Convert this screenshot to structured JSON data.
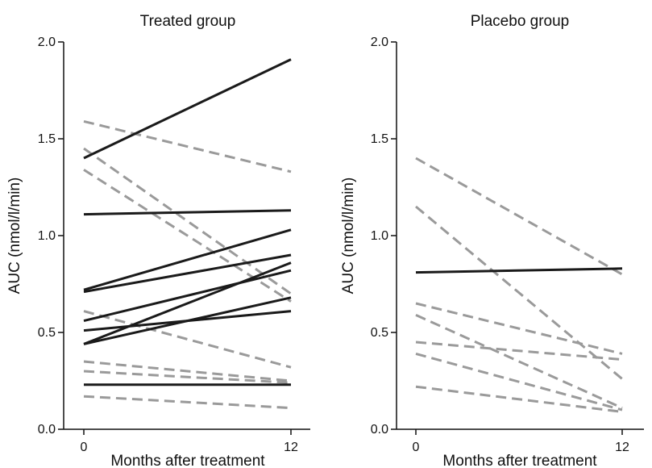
{
  "chart_data": [
    {
      "type": "line",
      "title": "Treated group",
      "xlabel": "Months after treatment",
      "ylabel": "AUC (nmol/l/min)",
      "categories": [
        "0",
        "12"
      ],
      "x": [
        0,
        12
      ],
      "xticks": [
        "0",
        "12"
      ],
      "yticks": [
        "0.0",
        "0.5",
        "1.0",
        "1.5",
        "2.0"
      ],
      "ylim": [
        0,
        2
      ],
      "grid": false,
      "series": [
        {
          "style": "solid",
          "values": [
            1.4,
            1.91
          ]
        },
        {
          "style": "solid",
          "values": [
            1.11,
            1.13
          ]
        },
        {
          "style": "solid",
          "values": [
            0.72,
            1.03
          ]
        },
        {
          "style": "solid",
          "values": [
            0.71,
            0.9
          ]
        },
        {
          "style": "solid",
          "values": [
            0.56,
            0.82
          ]
        },
        {
          "style": "solid",
          "values": [
            0.44,
            0.86
          ]
        },
        {
          "style": "solid",
          "values": [
            0.44,
            0.68
          ]
        },
        {
          "style": "solid",
          "values": [
            0.51,
            0.61
          ]
        },
        {
          "style": "solid",
          "values": [
            0.23,
            0.23
          ]
        },
        {
          "style": "dashed",
          "values": [
            1.59,
            1.33
          ]
        },
        {
          "style": "dashed",
          "values": [
            1.45,
            0.7
          ]
        },
        {
          "style": "dashed",
          "values": [
            1.34,
            0.66
          ]
        },
        {
          "style": "dashed",
          "values": [
            0.61,
            0.32
          ]
        },
        {
          "style": "dashed",
          "values": [
            0.35,
            0.25
          ]
        },
        {
          "style": "dashed",
          "values": [
            0.3,
            0.24
          ]
        },
        {
          "style": "dashed",
          "values": [
            0.17,
            0.11
          ]
        }
      ]
    },
    {
      "type": "line",
      "title": "Placebo group",
      "xlabel": "Months after treatment",
      "ylabel": "AUC (nmol/l/min)",
      "categories": [
        "0",
        "12"
      ],
      "x": [
        0,
        12
      ],
      "xticks": [
        "0",
        "12"
      ],
      "yticks": [
        "0.0",
        "0.5",
        "1.0",
        "1.5",
        "2.0"
      ],
      "ylim": [
        0,
        2
      ],
      "grid": false,
      "series": [
        {
          "style": "solid",
          "values": [
            0.81,
            0.83
          ]
        },
        {
          "style": "dashed",
          "values": [
            1.4,
            0.8
          ]
        },
        {
          "style": "dashed",
          "values": [
            1.15,
            0.26
          ]
        },
        {
          "style": "dashed",
          "values": [
            0.65,
            0.39
          ]
        },
        {
          "style": "dashed",
          "values": [
            0.59,
            0.11
          ]
        },
        {
          "style": "dashed",
          "values": [
            0.45,
            0.36
          ]
        },
        {
          "style": "dashed",
          "values": [
            0.39,
            0.1
          ]
        },
        {
          "style": "dashed",
          "values": [
            0.22,
            0.09
          ]
        }
      ]
    }
  ],
  "colors": {
    "solid": "#1a1a1a",
    "dashed": "#9a9a9a",
    "axis": "#111111"
  }
}
